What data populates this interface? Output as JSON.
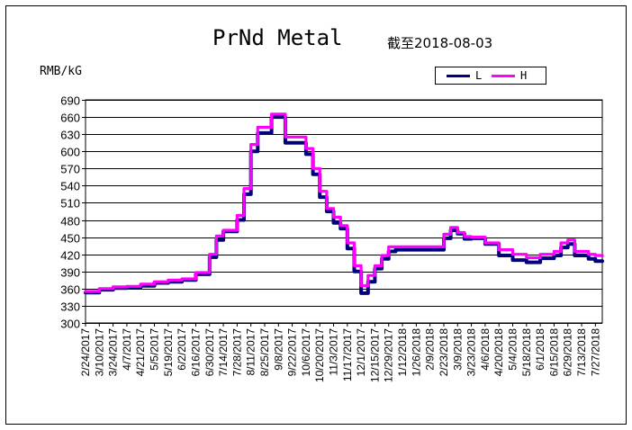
{
  "chart_data": {
    "type": "line",
    "title": "PrNd Metal",
    "subtitle": "截至2018-08-03",
    "ylabel": "RMB/kG",
    "ylim": [
      300,
      690
    ],
    "yticks": [
      300,
      330,
      360,
      390,
      420,
      450,
      480,
      510,
      540,
      570,
      600,
      630,
      660,
      690
    ],
    "grid": true,
    "legend_position": "top-right",
    "x_tick_labels": [
      "2/24/2017",
      "3/10/2017",
      "3/24/2017",
      "4/7/2017",
      "4/21/2017",
      "5/5/2017",
      "5/19/2017",
      "6/2/2017",
      "6/16/2017",
      "6/30/2017",
      "7/14/2017",
      "7/28/2017",
      "8/11/2017",
      "8/25/2017",
      "9/8/2017",
      "9/22/2017",
      "10/6/2017",
      "10/20/2017",
      "11/3/2017",
      "11/17/2017",
      "12/1/2017",
      "12/15/2017",
      "12/29/2017",
      "1/12/2018",
      "1/26/2018",
      "2/9/2018",
      "2/23/2018",
      "3/9/2018",
      "3/23/2018",
      "4/6/2018",
      "4/20/2018",
      "5/4/2018",
      "5/18/2018",
      "6/1/2018",
      "6/15/2018",
      "6/29/2018",
      "7/13/2018",
      "7/27/2018"
    ],
    "x": [
      "2/24/2017",
      "3/10/2017",
      "3/24/2017",
      "4/7/2017",
      "4/21/2017",
      "5/5/2017",
      "5/19/2017",
      "6/2/2017",
      "6/16/2017",
      "6/30/2017",
      "7/7/2017",
      "7/14/2017",
      "7/28/2017",
      "8/4/2017",
      "8/11/2017",
      "8/18/2017",
      "8/25/2017",
      "9/1/2017",
      "9/8/2017",
      "9/15/2017",
      "9/22/2017",
      "10/6/2017",
      "10/13/2017",
      "10/20/2017",
      "10/27/2017",
      "11/3/2017",
      "11/10/2017",
      "11/17/2017",
      "11/24/2017",
      "12/1/2017",
      "12/8/2017",
      "12/15/2017",
      "12/22/2017",
      "12/29/2017",
      "1/5/2018",
      "1/12/2018",
      "1/26/2018",
      "2/9/2018",
      "2/23/2018",
      "3/2/2018",
      "3/9/2018",
      "3/16/2018",
      "3/23/2018",
      "4/6/2018",
      "4/20/2018",
      "5/4/2018",
      "5/18/2018",
      "6/1/2018",
      "6/15/2018",
      "6/22/2018",
      "6/29/2018",
      "7/6/2018",
      "7/13/2018",
      "7/20/2018",
      "7/27/2018",
      "8/3/2018"
    ],
    "series": [
      {
        "name": "L",
        "color": "#00007a",
        "values": [
          353,
          358,
          361,
          362,
          365,
          370,
          372,
          375,
          385,
          415,
          445,
          460,
          480,
          525,
          600,
          632,
          632,
          660,
          660,
          615,
          615,
          595,
          560,
          520,
          495,
          475,
          465,
          430,
          390,
          352,
          372,
          395,
          412,
          425,
          428,
          428,
          428,
          428,
          448,
          462,
          456,
          447,
          448,
          438,
          418,
          410,
          406,
          413,
          418,
          432,
          438,
          418,
          418,
          412,
          408,
          408
        ]
      },
      {
        "name": "H",
        "color": "#ff00ff",
        "values": [
          355,
          360,
          363,
          364,
          368,
          372,
          375,
          377,
          388,
          420,
          452,
          462,
          488,
          535,
          612,
          642,
          642,
          665,
          665,
          625,
          625,
          605,
          570,
          530,
          500,
          485,
          470,
          440,
          400,
          365,
          383,
          400,
          418,
          433,
          433,
          433,
          433,
          433,
          455,
          467,
          458,
          451,
          450,
          440,
          428,
          420,
          414,
          420,
          425,
          440,
          445,
          425,
          425,
          420,
          418,
          417
        ]
      }
    ]
  }
}
